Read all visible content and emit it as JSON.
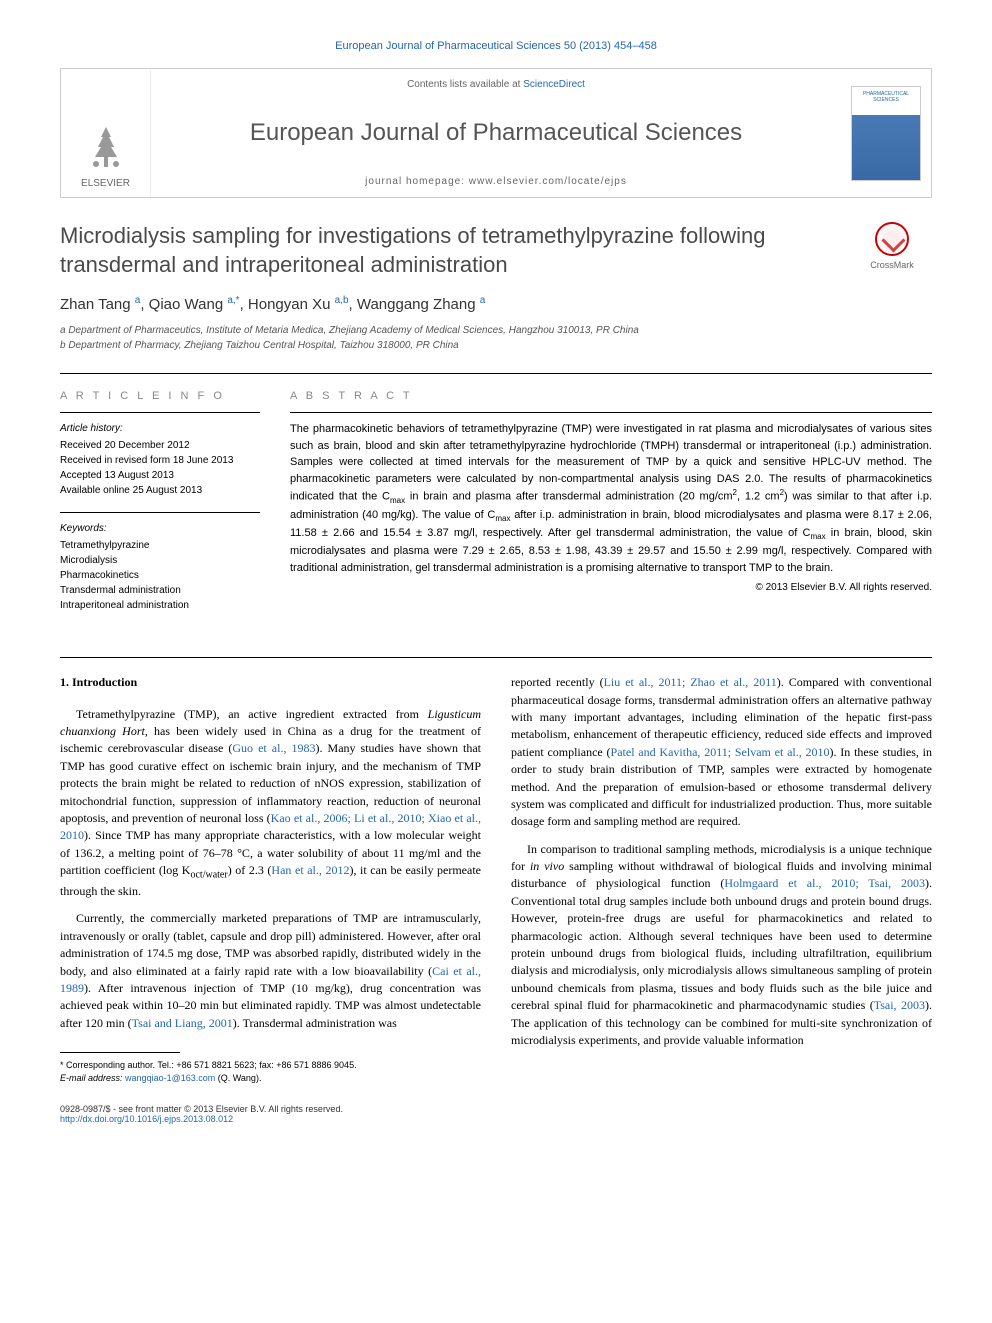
{
  "header": {
    "citation": "European Journal of Pharmaceutical Sciences 50 (2013) 454–458",
    "contents_prefix": "Contents lists available at ",
    "contents_link": "ScienceDirect",
    "journal_name": "European Journal of Pharmaceutical Sciences",
    "homepage_label": "journal homepage: www.elsevier.com/locate/ejps",
    "publisher": "ELSEVIER"
  },
  "article": {
    "title": "Microdialysis sampling for investigations of tetramethylpyrazine following transdermal and intraperitoneal administration",
    "crossmark": "CrossMark",
    "authors_html": "Zhan Tang <sup>a</sup>, Qiao Wang <sup>a,*</sup>, Hongyan Xu <sup>a,b</sup>, Wanggang Zhang <sup>a</sup>",
    "affiliations": [
      "a Department of Pharmaceutics, Institute of Metaria Medica, Zhejiang Academy of Medical Sciences, Hangzhou 310013, PR China",
      "b Department of Pharmacy, Zhejiang Taizhou Central Hospital, Taizhou 318000, PR China"
    ]
  },
  "info": {
    "heading": "A R T I C L E   I N F O",
    "history_label": "Article history:",
    "history": [
      "Received 20 December 2012",
      "Received in revised form 18 June 2013",
      "Accepted 13 August 2013",
      "Available online 25 August 2013"
    ],
    "keywords_label": "Keywords:",
    "keywords": [
      "Tetramethylpyrazine",
      "Microdialysis",
      "Pharmacokinetics",
      "Transdermal administration",
      "Intraperitoneal administration"
    ]
  },
  "abstract": {
    "heading": "A B S T R A C T",
    "text_html": "The pharmacokinetic behaviors of tetramethylpyrazine (TMP) were investigated in rat plasma and microdialysates of various sites such as brain, blood and skin after tetramethylpyrazine hydrochloride (TMPH) transdermal or intraperitoneal (i.p.) administration. Samples were collected at timed intervals for the measurement of TMP by a quick and sensitive HPLC-UV method. The pharmacokinetic parameters were calculated by non-compartmental analysis using DAS 2.0. The results of pharmacokinetics indicated that the C<sub>max</sub> in brain and plasma after transdermal administration (20 mg/cm<sup>2</sup>, 1.2 cm<sup>2</sup>) was similar to that after i.p. administration (40 mg/kg). The value of C<sub>max</sub> after i.p. administration in brain, blood microdialysates and plasma were 8.17 ± 2.06, 11.58 ± 2.66 and 15.54 ± 3.87 mg/l, respectively. After gel transdermal administration, the value of C<sub>max</sub> in brain, blood, skin microdialysates and plasma were 7.29 ± 2.65, 8.53 ± 1.98, 43.39 ± 29.57 and 15.50 ± 2.99 mg/l, respectively. Compared with traditional administration, gel transdermal administration is a promising alternative to transport TMP to the brain.",
    "copyright": "© 2013 Elsevier B.V. All rights reserved."
  },
  "body": {
    "section_heading": "1. Introduction",
    "col1": {
      "p1_html": "Tetramethylpyrazine (TMP), an active ingredient extracted from <i>Ligusticum chuanxiong Hort</i>, has been widely used in China as a drug for the treatment of ischemic cerebrovascular disease (<a href='#'>Guo et al., 1983</a>). Many studies have shown that TMP has good curative effect on ischemic brain injury, and the mechanism of TMP protects the brain might be related to reduction of nNOS expression, stabilization of mitochondrial function, suppression of inflammatory reaction, reduction of neuronal apoptosis, and prevention of neuronal loss (<a href='#'>Kao et al., 2006; Li et al., 2010; Xiao et al., 2010</a>). Since TMP has many appropriate characteristics, with a low molecular weight of 136.2, a melting point of 76–78 °C, a water solubility of about 11 mg/ml and the partition coefficient (log K<sub>oct/water</sub>) of 2.3 (<a href='#'>Han et al., 2012</a>), it can be easily permeate through the skin.",
      "p2_html": "Currently, the commercially marketed preparations of TMP are intramuscularly, intravenously or orally (tablet, capsule and drop pill) administered. However, after oral administration of 174.5 mg dose, TMP was absorbed rapidly, distributed widely in the body, and also eliminated at a fairly rapid rate with a low bioavailability (<a href='#'>Cai et al., 1989</a>). After intravenous injection of TMP (10 mg/kg), drug concentration was achieved peak within 10–20 min but eliminated rapidly. TMP was almost undetectable after 120 min (<a href='#'>Tsai and Liang, 2001</a>). Transdermal administration was"
    },
    "col2": {
      "p1_html": "reported recently (<a href='#'>Liu et al., 2011; Zhao et al., 2011</a>). Compared with conventional pharmaceutical dosage forms, transdermal administration offers an alternative pathway with many important advantages, including elimination of the hepatic first-pass metabolism, enhancement of therapeutic efficiency, reduced side effects and improved patient compliance (<a href='#'>Patel and Kavitha, 2011; Selvam et al., 2010</a>). In these studies, in order to study brain distribution of TMP, samples were extracted by homogenate method. And the preparation of emulsion-based or ethosome transdermal delivery system was complicated and difficult for industrialized production. Thus, more suitable dosage form and sampling method are required.",
      "p2_html": "In comparison to traditional sampling methods, microdialysis is a unique technique for <i>in vivo</i> sampling without withdrawal of biological fluids and involving minimal disturbance of physiological function (<a href='#'>Holmgaard et al., 2010; Tsai, 2003</a>). Conventional total drug samples include both unbound drugs and protein bound drugs. However, protein-free drugs are useful for pharmacokinetics and related to pharmacologic action. Although several techniques have been used to determine protein unbound drugs from biological fluids, including ultrafiltration, equilibrium dialysis and microdialysis, only microdialysis allows simultaneous sampling of protein unbound chemicals from plasma, tissues and body fluids such as the bile juice and cerebral spinal fluid for pharmacokinetic and pharmacodynamic studies (<a href='#'>Tsai, 2003</a>). The application of this technology can be combined for multi-site synchronization of microdialysis experiments, and provide valuable information"
    }
  },
  "footnote": {
    "corresponding_html": "* Corresponding author. Tel.: +86 571 8821 5623; fax: +86 571 8886 9045.",
    "email_label": "E-mail address:",
    "email": "wangqiao-1@163.com",
    "email_name": "(Q. Wang)."
  },
  "footer": {
    "issn": "0928-0987/$ - see front matter © 2013 Elsevier B.V. All rights reserved.",
    "doi": "http://dx.doi.org/10.1016/j.ejps.2013.08.012"
  },
  "colors": {
    "link": "#2566b0",
    "text": "#000000",
    "muted": "#666666"
  }
}
